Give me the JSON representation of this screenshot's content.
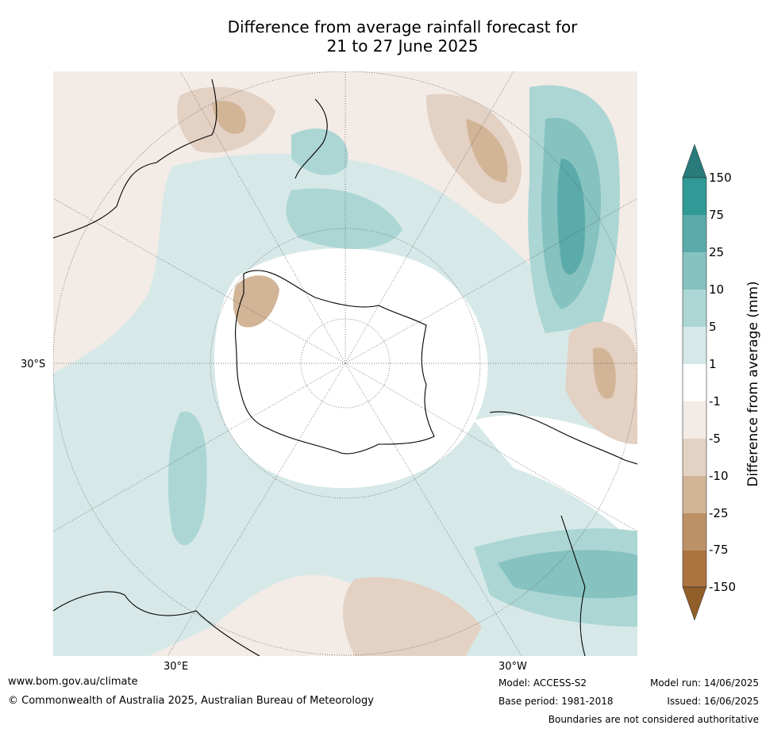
{
  "title_line1": "Difference from average rainfall forecast for",
  "title_line2": "21 to 27 June 2025",
  "map": {
    "projection": "south polar stereographic",
    "lat_label": "30°S",
    "lon_labels": [
      "30°E",
      "30°W"
    ],
    "coastline_color": "#000000",
    "graticule": "dotted"
  },
  "colorbar": {
    "title": "Difference from average (mm)",
    "ticks": [
      "150",
      "75",
      "25",
      "10",
      "5",
      "1",
      "-1",
      "-5",
      "-10",
      "-25",
      "-75",
      "-150"
    ],
    "colors": {
      "above_150": "#2a7b7b",
      "75_150": "#2f9a96",
      "25_75": "#5aabaa",
      "10_25": "#85c2c0",
      "5_10": "#acd6d4",
      "1_5": "#d6e9e8",
      "neutral": "#ffffff",
      "m1_m5": "#f3ebe6",
      "m5_m10": "#e3d1c3",
      "m10_m25": "#d2b497",
      "m25_m75": "#bd9166",
      "m75_m150": "#ac7440",
      "below_m150": "#915d29"
    }
  },
  "footer": {
    "website": "www.bom.gov.au/climate",
    "copyright": "© Commonwealth of Australia 2025, Australian Bureau of Meteorology",
    "model": "Model: ACCESS-S2",
    "base_period": "Base period: 1981-2018",
    "model_run": "Model run: 14/06/2025",
    "issued": "Issued: 16/06/2025",
    "disclaimer": "Boundaries are not considered authoritative"
  }
}
